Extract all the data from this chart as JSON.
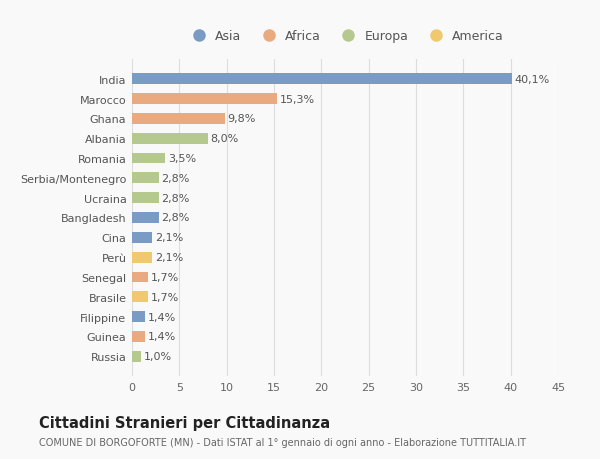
{
  "categories": [
    "India",
    "Marocco",
    "Ghana",
    "Albania",
    "Romania",
    "Serbia/Montenegro",
    "Ucraina",
    "Bangladesh",
    "Cina",
    "Perù",
    "Senegal",
    "Brasile",
    "Filippine",
    "Guinea",
    "Russia"
  ],
  "values": [
    40.1,
    15.3,
    9.8,
    8.0,
    3.5,
    2.8,
    2.8,
    2.8,
    2.1,
    2.1,
    1.7,
    1.7,
    1.4,
    1.4,
    1.0
  ],
  "labels": [
    "40,1%",
    "15,3%",
    "9,8%",
    "8,0%",
    "3,5%",
    "2,8%",
    "2,8%",
    "2,8%",
    "2,1%",
    "2,1%",
    "1,7%",
    "1,7%",
    "1,4%",
    "1,4%",
    "1,0%"
  ],
  "continents": [
    "Asia",
    "Africa",
    "Africa",
    "Europa",
    "Europa",
    "Europa",
    "Europa",
    "Asia",
    "Asia",
    "America",
    "Africa",
    "America",
    "Asia",
    "Africa",
    "Europa"
  ],
  "colors": {
    "Asia": "#7a9cc4",
    "Africa": "#e8aa7e",
    "Europa": "#b5c98e",
    "America": "#f0c96e"
  },
  "legend_order": [
    "Asia",
    "Africa",
    "Europa",
    "America"
  ],
  "xlim": [
    0,
    45
  ],
  "xticks": [
    0,
    5,
    10,
    15,
    20,
    25,
    30,
    35,
    40,
    45
  ],
  "title": "Cittadini Stranieri per Cittadinanza",
  "subtitle": "COMUNE DI BORGOFORTE (MN) - Dati ISTAT al 1° gennaio di ogni anno - Elaborazione TUTTITALIA.IT",
  "bg_color": "#f9f9f9",
  "bar_height": 0.55,
  "label_fontsize": 8,
  "tick_fontsize": 8,
  "title_fontsize": 10.5,
  "subtitle_fontsize": 7
}
